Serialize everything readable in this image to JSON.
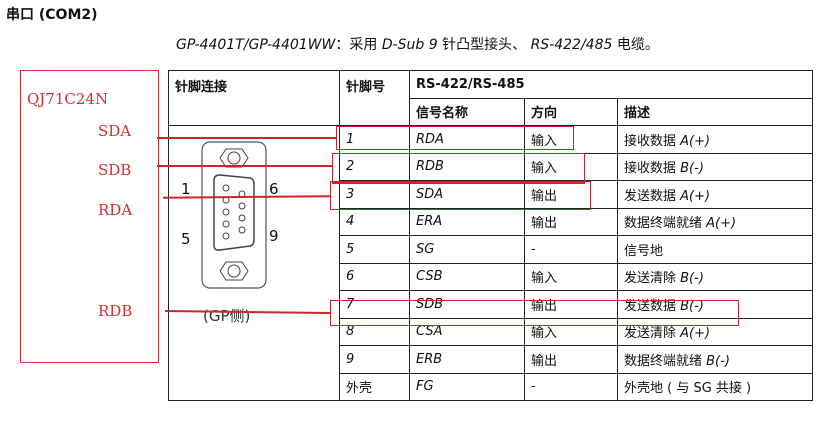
{
  "title": "串口 (COM2)",
  "subtitle": {
    "models": "GP-4401T/GP-4401WW",
    "pre": "：采用 ",
    "conn": "D-Sub 9",
    "mid": " 针凸型接头、 ",
    "std": "RS-422/485",
    "post": " 电缆。"
  },
  "table": {
    "headers": {
      "pin_conn": "针脚连接",
      "pin_no": "针脚号",
      "group": "RS-422/RS-485",
      "signal": "信号名称",
      "dir": "方向",
      "desc": "描述"
    },
    "connector": {
      "pin1": "1",
      "pin6": "6",
      "pin5": "5",
      "pin9": "9",
      "caption": "(GP侧)"
    },
    "rows": [
      {
        "pin": "1",
        "signal": "RDA",
        "dir": "输入",
        "desc": "接收数据 ",
        "desc_em": "A(+)"
      },
      {
        "pin": "2",
        "signal": "RDB",
        "dir": "输入",
        "desc": "接收数据 ",
        "desc_em": "B(-)"
      },
      {
        "pin": "3",
        "signal": "SDA",
        "dir": "输出",
        "desc": "发送数据 ",
        "desc_em": "A(+)"
      },
      {
        "pin": "4",
        "signal": "ERA",
        "dir": "输出",
        "desc": "数据终端就绪 ",
        "desc_em": "A(+)"
      },
      {
        "pin": "5",
        "signal": "SG",
        "dir": "-",
        "desc": "信号地",
        "desc_em": ""
      },
      {
        "pin": "6",
        "signal": "CSB",
        "dir": "输入",
        "desc": "发送清除 ",
        "desc_em": "B(-)"
      },
      {
        "pin": "7",
        "signal": "SDB",
        "dir": "输出",
        "desc": "发送数据 ",
        "desc_em": "B(-)"
      },
      {
        "pin": "8",
        "signal": "CSA",
        "dir": "输入",
        "desc": "发送清除 ",
        "desc_em": "A(+)"
      },
      {
        "pin": "9",
        "signal": "ERB",
        "dir": "输出",
        "desc": "数据终端就绪 ",
        "desc_em": "B(-)"
      },
      {
        "pin": "外壳",
        "signal": "FG",
        "dir": "-",
        "desc": "外壳地 ( 与 SG 共接 )",
        "desc_em": ""
      }
    ]
  },
  "annotation": {
    "device": "QJ71C24N",
    "signals": [
      "SDA",
      "SDB",
      "RDA",
      "RDB"
    ],
    "color": "#d43030"
  }
}
